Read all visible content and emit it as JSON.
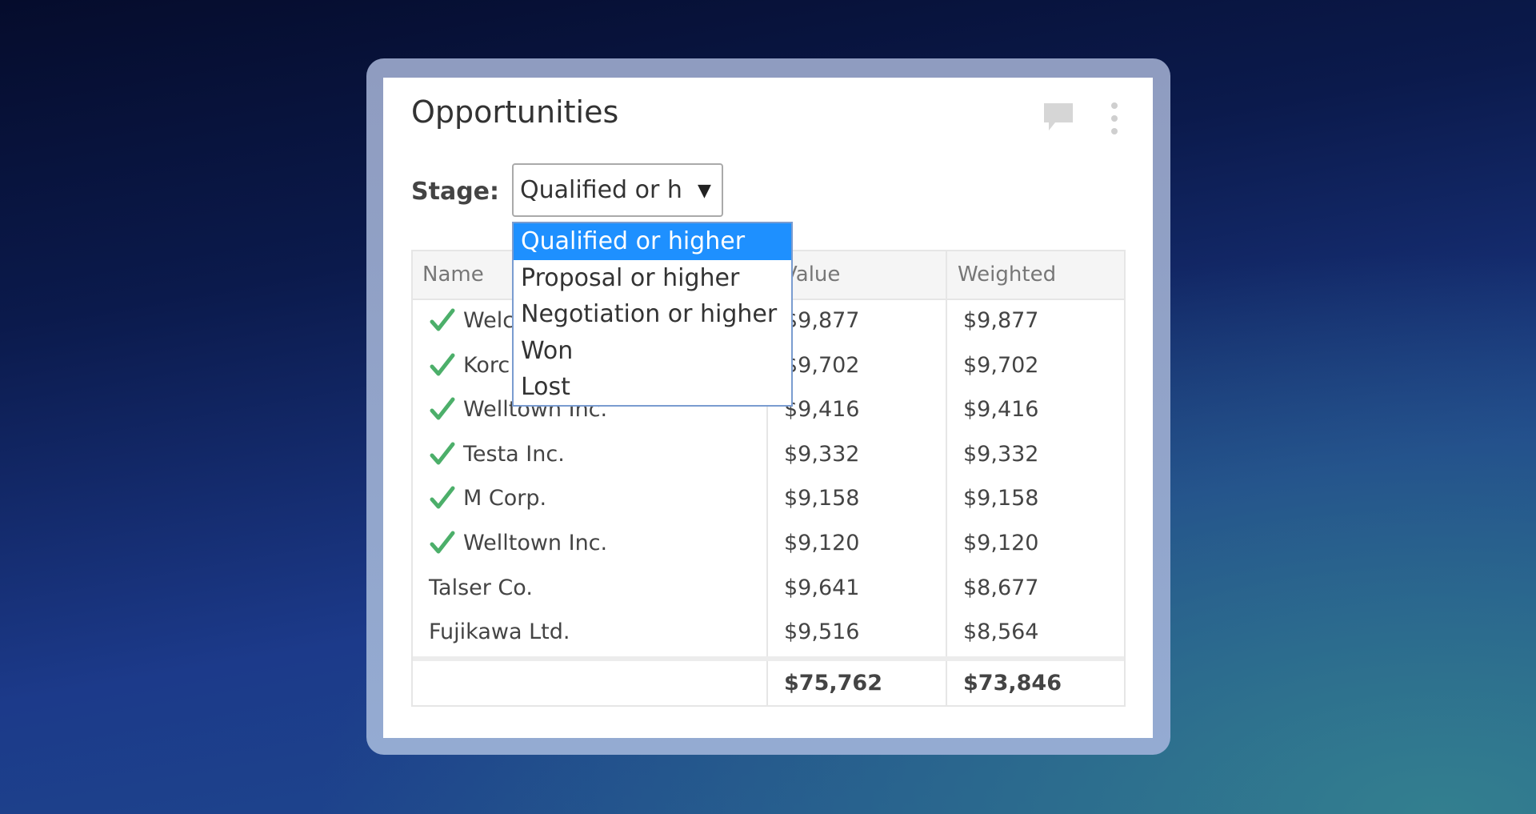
{
  "widget": {
    "title": "Opportunities",
    "filter": {
      "label": "Stage:",
      "selected": "Qualified or higher",
      "options": [
        "Qualified or higher",
        "Proposal or higher",
        "Negotiation or higher",
        "Won",
        "Lost"
      ]
    },
    "table": {
      "columns": [
        "Name",
        "Value",
        "Weighted"
      ],
      "rows": [
        {
          "name": "Welc",
          "value": "$9,877",
          "weighted": "$9,877",
          "won": true
        },
        {
          "name": "Korc",
          "value": "$9,702",
          "weighted": "$9,702",
          "won": true
        },
        {
          "name": "Welltown Inc.",
          "value": "$9,416",
          "weighted": "$9,416",
          "won": true
        },
        {
          "name": "Testa Inc.",
          "value": "$9,332",
          "weighted": "$9,332",
          "won": true
        },
        {
          "name": "M Corp.",
          "value": "$9,158",
          "weighted": "$9,158",
          "won": true
        },
        {
          "name": "Welltown Inc.",
          "value": "$9,120",
          "weighted": "$9,120",
          "won": true
        },
        {
          "name": "Talser Co.",
          "value": "$9,641",
          "weighted": "$8,677",
          "won": false
        },
        {
          "name": "Fujikawa Ltd.",
          "value": "$9,516",
          "weighted": "$8,564",
          "won": false
        }
      ],
      "totals": {
        "value": "$75,762",
        "weighted": "$73,846"
      }
    }
  }
}
